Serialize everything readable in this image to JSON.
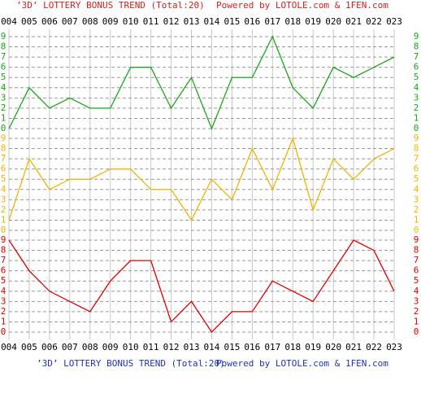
{
  "chart_data": {
    "type": "line",
    "title": "’3D’ LOTTERY BONUS TREND (Total:20)",
    "credit": "Powered by LOTOLE.com & 1FEN.com",
    "categories": [
      "004",
      "005",
      "006",
      "007",
      "008",
      "009",
      "010",
      "011",
      "012",
      "013",
      "014",
      "015",
      "016",
      "017",
      "018",
      "019",
      "020",
      "021",
      "022",
      "023"
    ],
    "grid": true,
    "panels": [
      {
        "series": [
          {
            "color": "#1aa81a",
            "values": [
              0,
              4,
              2,
              3,
              2,
              2,
              6,
              6,
              2,
              5,
              0,
              5,
              5,
              9,
              4,
              2,
              6,
              5,
              6,
              7
            ]
          }
        ],
        "ylim": [
          0,
          9
        ],
        "yticks": [
          0,
          1,
          2,
          3,
          4,
          5,
          6,
          7,
          8,
          9
        ]
      },
      {
        "series": [
          {
            "color": "#f0b400",
            "values": [
              1,
              7,
              4,
              5,
              5,
              6,
              6,
              4,
              4,
              1,
              5,
              3,
              8,
              4,
              9,
              2,
              7,
              5,
              7,
              8
            ]
          }
        ],
        "ylim": [
          0,
          9
        ],
        "yticks": [
          0,
          1,
          2,
          3,
          4,
          5,
          6,
          7,
          8,
          9
        ]
      },
      {
        "series": [
          {
            "color": "#dd0000",
            "values": [
              9,
              6,
              4,
              3,
              2,
              5,
              7,
              7,
              1,
              3,
              0,
              2,
              2,
              5,
              4,
              3,
              6,
              9,
              8,
              4
            ]
          }
        ],
        "ylim": [
          0,
          9
        ],
        "yticks": [
          0,
          1,
          2,
          3,
          4,
          5,
          6,
          7,
          8,
          9
        ]
      }
    ]
  }
}
